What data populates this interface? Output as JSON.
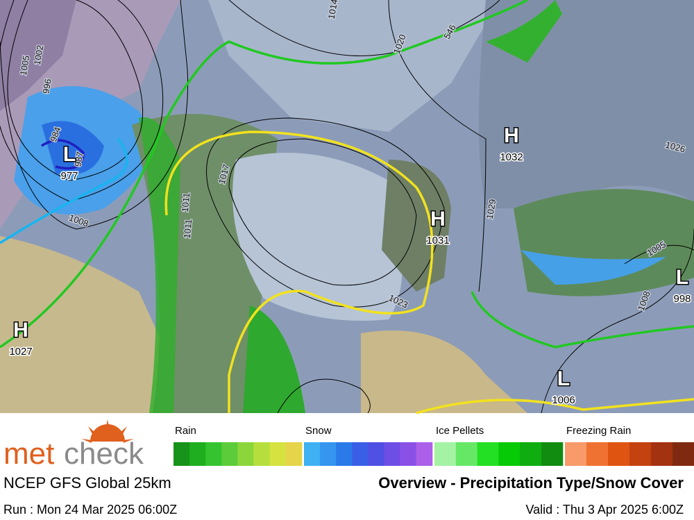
{
  "map": {
    "pressure_centers": [
      {
        "type": "L",
        "value": 977
      },
      {
        "type": "H",
        "value": 1032
      },
      {
        "type": "H",
        "value": 1031
      },
      {
        "type": "H",
        "value": 1027
      },
      {
        "type": "L",
        "value": 998
      },
      {
        "type": "L",
        "value": 1006
      }
    ],
    "contour_labels": [
      "1005",
      "1002",
      "996",
      "984",
      "987",
      "1008",
      "1011",
      "1014",
      "1017",
      "1011",
      "1020",
      "1023",
      "1026",
      "1029",
      "1005",
      "1008",
      "546"
    ]
  },
  "legend": [
    {
      "label": "Rain",
      "colors": [
        "#17921a",
        "#1fae1f",
        "#35c42f",
        "#5ccc3a",
        "#8cd63c",
        "#b6df3e",
        "#d5e23f",
        "#e6d44a"
      ]
    },
    {
      "label": "Snow",
      "colors": [
        "#3fb0f2",
        "#3595ef",
        "#2a7be9",
        "#3a5fe6",
        "#4f50e3",
        "#6d4fe6",
        "#8b51e7",
        "#ac5fe8"
      ]
    },
    {
      "label": "Ice Pellets",
      "colors": [
        "#a4f2a4",
        "#66e866",
        "#24e024",
        "#05ca05",
        "#0fad0f",
        "#118c11"
      ]
    },
    {
      "label": "Freezing Rain",
      "colors": [
        "#f99a6a",
        "#f07232",
        "#e05412",
        "#c44210",
        "#a23210",
        "#7f2a10"
      ]
    }
  ],
  "footer": {
    "logo": {
      "part1": "met",
      "part2": "check"
    },
    "model": "NCEP GFS Global 25km",
    "run": "Run : Mon 24 Mar 2025 06:00Z",
    "title": "Overview - Precipitation Type/Snow Cover",
    "valid": "Valid : Thu 3 Apr 2025 6:00Z"
  }
}
